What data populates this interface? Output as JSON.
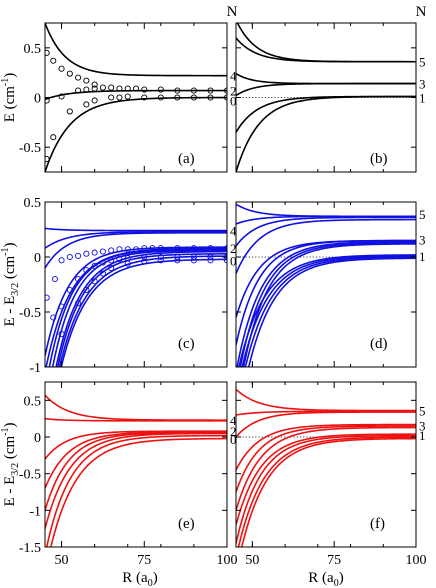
{
  "figure": {
    "N_label": "N",
    "xlabel_main": "R (a",
    "xlabel_sub": "0",
    "xlabel_end": ")"
  },
  "chart_data": [
    {
      "id": "a",
      "type": "line",
      "color": "#000000",
      "panel_label": "(a)",
      "ylabel": [
        "E (cm",
        "-1",
        ")"
      ],
      "xlim": [
        45,
        100
      ],
      "ylim": [
        -0.75,
        0.75
      ],
      "xticks": [],
      "xtick_labels": [],
      "yticks": [
        -0.5,
        0,
        0.5
      ],
      "ytick_labels": [
        "-0.5",
        "0",
        "0.5"
      ],
      "right_labels": [
        {
          "text": "4",
          "y": 0.22
        },
        {
          "text": "2",
          "y": 0.07
        },
        {
          "text": "0",
          "y": -0.03
        }
      ],
      "dotted_zero": false,
      "series": [
        {
          "asym": 0.22,
          "start": 0.75,
          "x0": 45,
          "scale": 6.0
        },
        {
          "asym": 0.07,
          "start": -0.02,
          "x0": 45,
          "scale": 7.0
        },
        {
          "asym": 0.0,
          "start": -0.75,
          "x0": 45,
          "scale": 7.5
        }
      ],
      "markers": [
        {
          "x": [
            45.5,
            47.5,
            50,
            52.5,
            55,
            57.5,
            60
          ],
          "y": [
            0.45,
            0.37,
            0.29,
            0.24,
            0.2,
            0.17,
            0.13
          ]
        },
        {
          "x": [
            45.5,
            50,
            55,
            57.5,
            60,
            62.5,
            65,
            67.5,
            70,
            72.5,
            75,
            80,
            85,
            90,
            95,
            100
          ],
          "y": [
            -0.03,
            0.01,
            0.07,
            0.08,
            0.09,
            0.1,
            0.1,
            0.09,
            0.09,
            0.09,
            0.08,
            0.08,
            0.07,
            0.07,
            0.07,
            0.07
          ]
        },
        {
          "x": [
            45.5,
            47.5,
            52.5,
            57.5,
            60,
            65,
            67.5,
            70,
            75,
            80,
            85,
            90,
            95,
            100
          ],
          "y": [
            -0.62,
            -0.4,
            -0.14,
            -0.07,
            -0.03,
            0.0,
            0.0,
            0.01,
            0.0,
            0.0,
            0.0,
            0.0,
            0.0,
            0.0
          ]
        }
      ]
    },
    {
      "id": "b",
      "type": "line",
      "color": "#000000",
      "panel_label": "(b)",
      "ylabel": null,
      "xlim": [
        45,
        100
      ],
      "ylim": [
        -0.75,
        0.75
      ],
      "xticks": [],
      "xtick_labels": [],
      "yticks": [
        -0.5,
        0,
        0.5
      ],
      "ytick_labels": [],
      "right_labels": [
        {
          "text": "5",
          "y": 0.36
        },
        {
          "text": "3",
          "y": 0.14
        },
        {
          "text": "1",
          "y": 0.0
        }
      ],
      "dotted_zero": true,
      "series": [
        {
          "asym": 0.36,
          "start": 0.78,
          "x0": 45,
          "scale": 6.0
        },
        {
          "asym": 0.36,
          "start": 0.6,
          "x0": 45,
          "scale": 6.0
        },
        {
          "asym": 0.14,
          "start": 0.24,
          "x0": 45,
          "scale": 5.0
        },
        {
          "asym": 0.14,
          "start": 0.02,
          "x0": 45,
          "scale": 5.5
        },
        {
          "asym": 0.01,
          "start": -0.75,
          "x0": 45,
          "scale": 7.0
        },
        {
          "asym": 0.01,
          "start": -0.35,
          "x0": 45,
          "scale": 6.5
        }
      ],
      "markers": []
    },
    {
      "id": "c",
      "type": "line",
      "color": "#1010e0",
      "panel_label": "(c)",
      "ylabel": [
        "E - E",
        "3/2",
        " (cm",
        "-1",
        ")"
      ],
      "xlim": [
        45,
        100
      ],
      "ylim": [
        -1.0,
        0.5
      ],
      "xticks": [],
      "xtick_labels": [],
      "yticks": [
        -1,
        -0.5,
        0,
        0.5
      ],
      "ytick_labels": [
        "-1",
        "-0.5",
        "0",
        "0.5"
      ],
      "right_labels": [
        {
          "text": "4",
          "y": 0.24
        },
        {
          "text": "2",
          "y": 0.08
        },
        {
          "text": "0",
          "y": -0.03
        }
      ],
      "dotted_zero": false,
      "series": [
        {
          "asym": 0.24,
          "start": 0.26,
          "x0": 45,
          "scale": 6.0
        },
        {
          "asym": 0.23,
          "start": 0.08,
          "x0": 45,
          "scale": 7.0
        },
        {
          "asym": 0.22,
          "start": -0.1,
          "x0": 45,
          "scale": 6.5
        },
        {
          "asym": 0.09,
          "start": -0.9,
          "x0": 45,
          "scale": 7.0
        },
        {
          "asym": 0.08,
          "start": -1.05,
          "x0": 45,
          "scale": 7.5
        },
        {
          "asym": 0.07,
          "start": -1.05,
          "x0": 46,
          "scale": 7.0
        },
        {
          "asym": 0.06,
          "start": -1.05,
          "x0": 47,
          "scale": 7.0
        },
        {
          "asym": 0.05,
          "start": -1.05,
          "x0": 48,
          "scale": 7.5
        },
        {
          "asym": 0.03,
          "start": -1.05,
          "x0": 48.5,
          "scale": 7.5
        },
        {
          "asym": 0.01,
          "start": -1.05,
          "x0": 49,
          "scale": 8.0
        },
        {
          "asym": -0.02,
          "start": -1.05,
          "x0": 49.5,
          "scale": 8.0
        }
      ],
      "markers": [
        {
          "x": [
            45.5,
            48,
            50,
            52.5,
            55,
            57.5,
            60,
            62.5,
            65,
            67.5,
            70,
            72.5,
            75,
            77.5,
            80,
            85,
            90,
            95,
            100
          ],
          "y": [
            -0.37,
            -0.2,
            -0.03,
            0.0,
            0.01,
            0.03,
            0.04,
            0.05,
            0.06,
            0.07,
            0.07,
            0.07,
            0.08,
            0.08,
            0.08,
            0.08,
            0.08,
            0.08,
            0.08
          ]
        },
        {
          "x": [
            47.5,
            50,
            52.5,
            55,
            57.5,
            60,
            62.5,
            65,
            67.5,
            70,
            75,
            80,
            85,
            90,
            95,
            100
          ],
          "y": [
            -0.55,
            -0.45,
            -0.3,
            -0.2,
            -0.12,
            -0.08,
            -0.05,
            -0.03,
            -0.02,
            -0.01,
            0.0,
            0.0,
            0.0,
            0.0,
            0.0,
            0.0
          ]
        },
        {
          "x": [
            50,
            55,
            57.5,
            60,
            62.5,
            65,
            70,
            75,
            80,
            85,
            90,
            95,
            100
          ],
          "y": [
            -0.7,
            -0.42,
            -0.3,
            -0.22,
            -0.15,
            -0.1,
            -0.06,
            -0.04,
            -0.03,
            -0.03,
            -0.03,
            -0.03,
            -0.03
          ]
        }
      ]
    },
    {
      "id": "d",
      "type": "line",
      "color": "#1010e0",
      "panel_label": "(d)",
      "ylabel": null,
      "xlim": [
        45,
        100
      ],
      "ylim": [
        -1.0,
        0.5
      ],
      "xticks": [],
      "xtick_labels": [],
      "yticks": [
        -1,
        -0.5,
        0,
        0.5
      ],
      "ytick_labels": [],
      "right_labels": [
        {
          "text": "5",
          "y": 0.39
        },
        {
          "text": "3",
          "y": 0.16
        },
        {
          "text": "1",
          "y": 0.01
        }
      ],
      "dotted_zero": true,
      "series": [
        {
          "asym": 0.37,
          "start": 0.48,
          "x0": 45,
          "scale": 6.0
        },
        {
          "asym": 0.37,
          "start": 0.3,
          "x0": 45,
          "scale": 6.0
        },
        {
          "asym": 0.36,
          "start": 0.1,
          "x0": 45,
          "scale": 6.5
        },
        {
          "asym": 0.34,
          "start": -0.15,
          "x0": 45,
          "scale": 7.0
        },
        {
          "asym": 0.15,
          "start": -0.55,
          "x0": 45,
          "scale": 7.0
        },
        {
          "asym": 0.15,
          "start": -0.8,
          "x0": 45,
          "scale": 7.0
        },
        {
          "asym": 0.14,
          "start": -1.05,
          "x0": 45,
          "scale": 7.5
        },
        {
          "asym": 0.13,
          "start": -1.05,
          "x0": 46,
          "scale": 7.5
        },
        {
          "asym": 0.12,
          "start": -1.05,
          "x0": 47,
          "scale": 7.5
        },
        {
          "asym": 0.02,
          "start": -1.05,
          "x0": 45.5,
          "scale": 8.0
        },
        {
          "asym": 0.01,
          "start": -1.05,
          "x0": 46.5,
          "scale": 8.0
        },
        {
          "asym": 0.0,
          "start": -1.05,
          "x0": 47.5,
          "scale": 8.0
        },
        {
          "asym": -0.01,
          "start": -1.05,
          "x0": 48.5,
          "scale": 8.0
        }
      ],
      "markers": []
    },
    {
      "id": "e",
      "type": "line",
      "color": "#ee1111",
      "panel_label": "(e)",
      "ylabel": [
        "E - E",
        "3/2",
        " (cm",
        "-1",
        ")"
      ],
      "xlim": [
        45,
        100
      ],
      "ylim": [
        -1.5,
        0.75
      ],
      "xticks": [
        50,
        75,
        100
      ],
      "xtick_labels": [
        "50",
        "75",
        "100"
      ],
      "yticks": [
        -1.5,
        -1,
        -0.5,
        0,
        0.5
      ],
      "ytick_labels": [
        "-1.5",
        "-1",
        "-0.5",
        "0",
        "0.5"
      ],
      "right_labels": [
        {
          "text": "4",
          "y": 0.23
        },
        {
          "text": "2",
          "y": 0.08
        },
        {
          "text": "0",
          "y": -0.03
        }
      ],
      "dotted_zero": false,
      "series": [
        {
          "asym": 0.23,
          "start": 0.57,
          "x0": 45,
          "scale": 7.0
        },
        {
          "asym": 0.22,
          "start": 0.25,
          "x0": 45,
          "scale": 6.0
        },
        {
          "asym": 0.08,
          "start": -0.3,
          "x0": 45,
          "scale": 6.5
        },
        {
          "asym": 0.07,
          "start": -0.7,
          "x0": 45,
          "scale": 7.0
        },
        {
          "asym": 0.06,
          "start": -1.0,
          "x0": 45,
          "scale": 7.0
        },
        {
          "asym": 0.05,
          "start": -1.25,
          "x0": 45,
          "scale": 7.5
        },
        {
          "asym": 0.02,
          "start": -1.5,
          "x0": 45.5,
          "scale": 7.5
        },
        {
          "asym": -0.02,
          "start": -1.55,
          "x0": 46.5,
          "scale": 8.0
        }
      ],
      "markers": []
    },
    {
      "id": "f",
      "type": "line",
      "color": "#ee1111",
      "panel_label": "(f)",
      "ylabel": null,
      "xlim": [
        45,
        100
      ],
      "ylim": [
        -1.5,
        0.75
      ],
      "xticks": [
        50,
        75,
        100
      ],
      "xtick_labels": [
        "50",
        "75",
        "100"
      ],
      "yticks": [
        -1.5,
        -1,
        -0.5,
        0,
        0.5
      ],
      "ytick_labels": [],
      "right_labels": [
        {
          "text": "5",
          "y": 0.36
        },
        {
          "text": "3",
          "y": 0.16
        },
        {
          "text": "1",
          "y": 0.03
        }
      ],
      "dotted_zero": true,
      "series": [
        {
          "asym": 0.36,
          "start": 0.65,
          "x0": 45,
          "scale": 7.0
        },
        {
          "asym": 0.35,
          "start": 0.3,
          "x0": 45,
          "scale": 6.5
        },
        {
          "asym": 0.34,
          "start": 0.0,
          "x0": 45,
          "scale": 6.5
        },
        {
          "asym": 0.17,
          "start": -0.45,
          "x0": 45,
          "scale": 7.0
        },
        {
          "asym": 0.15,
          "start": -0.75,
          "x0": 45,
          "scale": 7.0
        },
        {
          "asym": 0.13,
          "start": -1.0,
          "x0": 45,
          "scale": 7.5
        },
        {
          "asym": 0.04,
          "start": -1.2,
          "x0": 45,
          "scale": 7.5
        },
        {
          "asym": 0.02,
          "start": -1.45,
          "x0": 45,
          "scale": 7.5
        },
        {
          "asym": 0.0,
          "start": -1.55,
          "x0": 45.5,
          "scale": 8.0
        },
        {
          "asym": -0.02,
          "start": -1.55,
          "x0": 46.5,
          "scale": 8.0
        }
      ],
      "markers": []
    }
  ]
}
